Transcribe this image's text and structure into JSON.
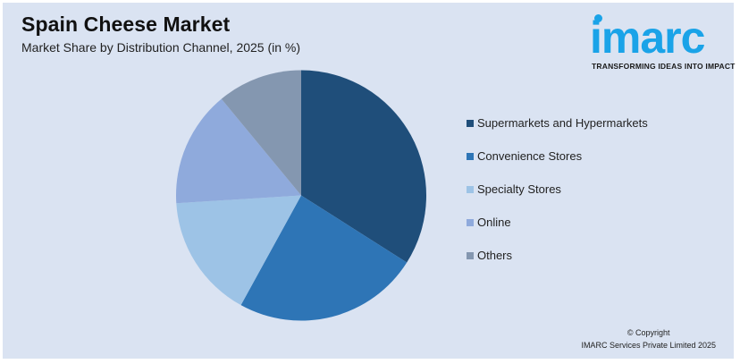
{
  "header": {
    "title": "Spain Cheese Market",
    "subtitle": "Market Share by Distribution Channel, 2025 (in %)"
  },
  "logo": {
    "word": "imarc",
    "tagline": "TRANSFORMING IDEAS INTO IMPACT",
    "color": "#1aa3e8"
  },
  "footer": {
    "line1": "© Copyright",
    "line2": "IMARC Services Private Limited 2025"
  },
  "legend": [
    {
      "label": "Supermarkets and Hypermarkets",
      "color": "#1f4e7a"
    },
    {
      "label": "Convenience Stores",
      "color": "#2e75b6"
    },
    {
      "label": "Specialty Stores",
      "color": "#9dc3e6"
    },
    {
      "label": "Online",
      "color": "#8faadc"
    },
    {
      "label": "Others",
      "color": "#8497b0"
    }
  ],
  "chart_data": {
    "type": "pie",
    "title": "Spain Cheese Market",
    "subtitle": "Market Share by Distribution Channel, 2025 (in %)",
    "categories": [
      "Supermarkets and Hypermarkets",
      "Convenience Stores",
      "Specialty Stores",
      "Online",
      "Others"
    ],
    "values": [
      34,
      24,
      16,
      15,
      11
    ],
    "colors": [
      "#1f4e7a",
      "#2e75b6",
      "#9dc3e6",
      "#8faadc",
      "#8497b0"
    ],
    "start_angle_deg": 0,
    "direction": "clockwise",
    "data_labels": false,
    "legend_position": "right"
  }
}
